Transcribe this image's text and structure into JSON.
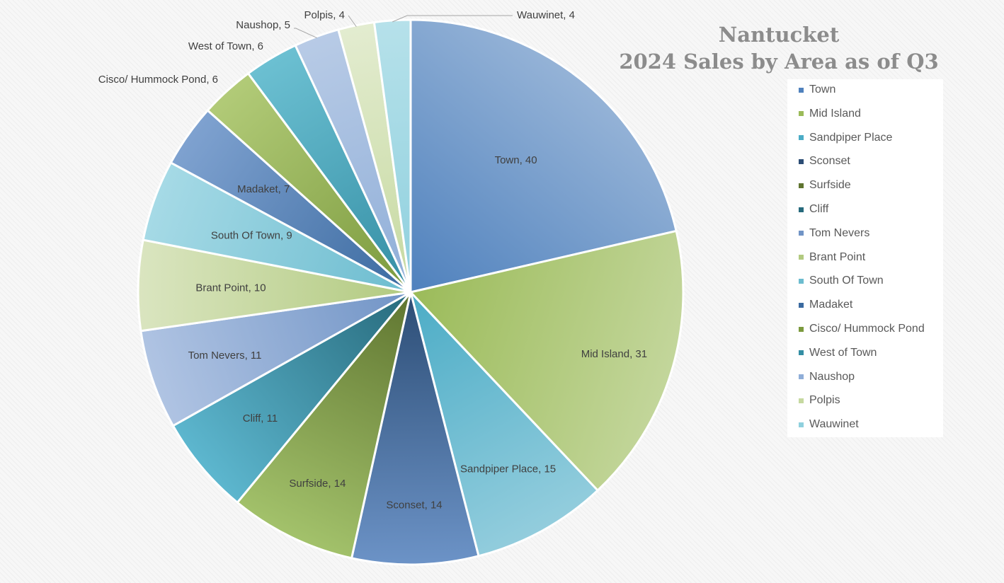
{
  "chart_data": {
    "type": "pie",
    "title_lines": [
      "Nantucket",
      "2024 Sales by Area as of Q3"
    ],
    "legend_position": "right",
    "slices": [
      {
        "label": "Town",
        "value": 40,
        "label_text": "Town, 40",
        "color_light": "#95b3d7",
        "color_dark": "#4f81bd",
        "legend_color": "#4f81bd"
      },
      {
        "label": "Mid Island",
        "value": 31,
        "label_text": "Mid Island, 31",
        "color_light": "#c3d69b",
        "color_dark": "#9bbb59",
        "legend_color": "#9bbb59"
      },
      {
        "label": "Sandpiper Place",
        "value": 15,
        "label_text": "Sandpiper Place, 15",
        "color_light": "#93cddd",
        "color_dark": "#4bacc6",
        "legend_color": "#4bacc6"
      },
      {
        "label": "Sconset",
        "value": 14,
        "label_text": "Sconset, 14",
        "color_light": "#6c93c7",
        "color_dark": "#2c4d75",
        "legend_color": "#2c4d75"
      },
      {
        "label": "Surfside",
        "value": 14,
        "label_text": "Surfside, 14",
        "color_light": "#a3c26b",
        "color_dark": "#5f7530",
        "legend_color": "#5f7530"
      },
      {
        "label": "Cliff",
        "value": 11,
        "label_text": "Cliff, 11",
        "color_light": "#5db7cf",
        "color_dark": "#276a7c",
        "legend_color": "#276a7c"
      },
      {
        "label": "Tom Nevers",
        "value": 11,
        "label_text": "Tom Nevers, 11",
        "color_light": "#b0c4e3",
        "color_dark": "#7194c6",
        "legend_color": "#7194c6"
      },
      {
        "label": "Brant Point",
        "value": 10,
        "label_text": "Brant Point, 10",
        "color_light": "#dae5c0",
        "color_dark": "#b2ca80",
        "legend_color": "#b2ca80"
      },
      {
        "label": "South Of Town",
        "value": 9,
        "label_text": "South Of Town, 9",
        "color_light": "#a6dae6",
        "color_dark": "#6cbccf",
        "legend_color": "#6cbccf"
      },
      {
        "label": "Madaket",
        "value": 7,
        "label_text": "Madaket, 7",
        "color_light": "#7fa2d0",
        "color_dark": "#3b6aa0",
        "legend_color": "#3b6aa0"
      },
      {
        "label": "Cisco/ Hummock Pond",
        "value": 6,
        "label_text": "Cisco/ Hummock Pond, 6",
        "color_light": "#b2cb78",
        "color_dark": "#7b9a3d",
        "legend_color": "#7b9a3d"
      },
      {
        "label": "West of Town",
        "value": 6,
        "label_text": "West of Town, 6",
        "color_light": "#6cc0d2",
        "color_dark": "#348ea4",
        "legend_color": "#348ea4"
      },
      {
        "label": "Naushop",
        "value": 5,
        "label_text": "Naushop, 5",
        "color_light": "#b8cbe6",
        "color_dark": "#8faed8",
        "legend_color": "#8faed8"
      },
      {
        "label": "Polpis",
        "value": 4,
        "label_text": "Polpis, 4",
        "color_light": "#e3ecd0",
        "color_dark": "#c6d9a0",
        "legend_color": "#c6d9a0"
      },
      {
        "label": "Wauwinet",
        "value": 4,
        "label_text": "Wauwinet, 4",
        "color_light": "#b6e1ea",
        "color_dark": "#8fd0de",
        "legend_color": "#8fd0de"
      }
    ]
  }
}
